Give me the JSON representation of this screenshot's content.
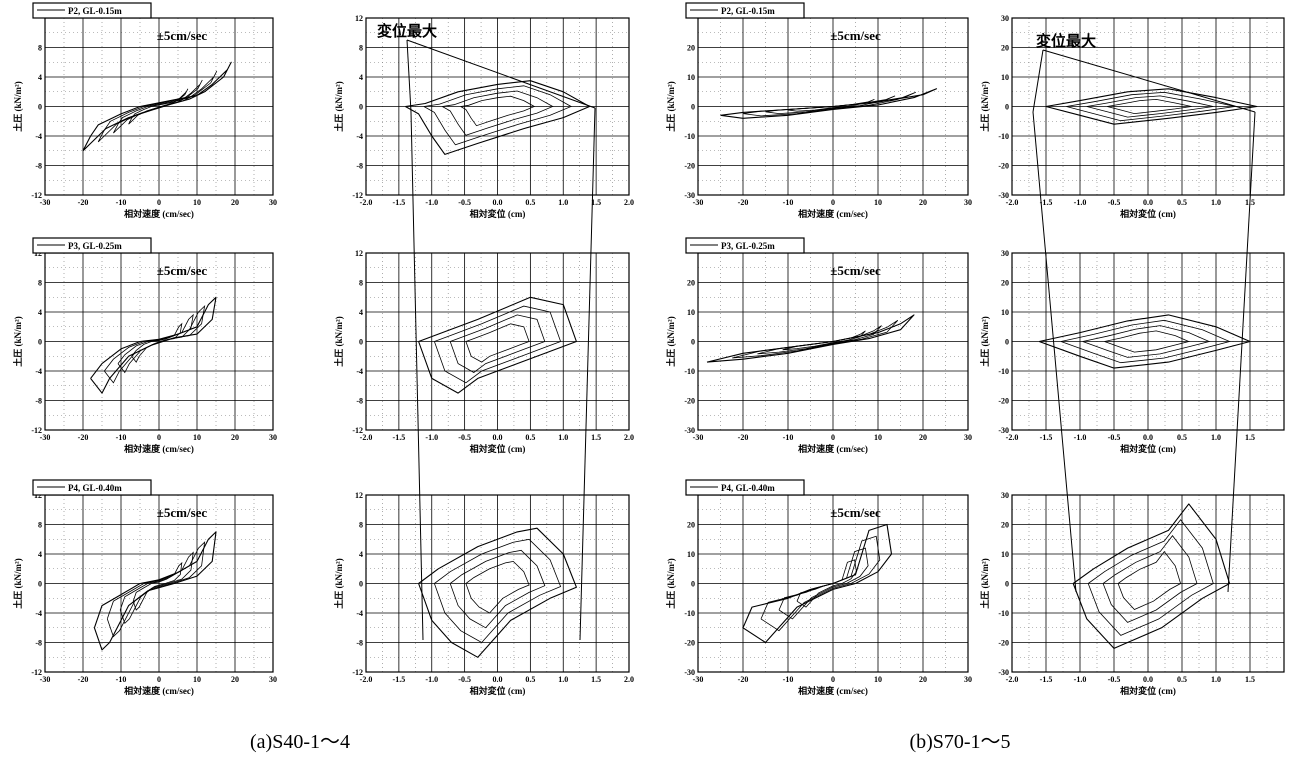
{
  "figure": {
    "captions": {
      "left": "(a)S40-1～4",
      "right": "(b)S70-1～5"
    },
    "annotation_text": "変位最大",
    "note_text": "±5cm/sec",
    "ylabel": "土圧 (kN/m²)",
    "xlabel_velocity": "相対速度 (cm/sec)",
    "xlabel_displacement": "相対変位 (cm)",
    "line_color": "#000000"
  },
  "chart_data": [
    {
      "id": "a-P2-vel",
      "type": "line",
      "legend": "P2, GL-0.15m",
      "note": "±5cm/sec",
      "xlabel": "相対速度 (cm/sec)",
      "ylabel": "土圧 (kN/m²)",
      "xlim": [
        -30,
        30
      ],
      "ylim": [
        -12,
        12
      ],
      "xticks": [
        -30,
        -20,
        -10,
        0,
        10,
        20,
        30
      ],
      "yticks": [
        -12,
        -8,
        -4,
        0,
        4,
        8
      ],
      "series": [
        {
          "points": [
            [
              -20,
              -6
            ],
            [
              -18,
              -4
            ],
            [
              -16,
              -2.5
            ],
            [
              -10,
              -1
            ],
            [
              -5,
              0
            ],
            [
              0,
              0.5
            ],
            [
              5,
              1
            ],
            [
              10,
              1.5
            ],
            [
              14,
              3
            ],
            [
              18,
              5
            ],
            [
              19,
              6
            ],
            [
              17,
              4
            ],
            [
              12,
              2
            ],
            [
              8,
              1
            ],
            [
              3,
              0.3
            ],
            [
              -2,
              -0.5
            ],
            [
              -8,
              -1.5
            ],
            [
              -14,
              -3
            ],
            [
              -18,
              -5
            ],
            [
              -20,
              -6
            ]
          ]
        }
      ]
    },
    {
      "id": "a-P2-disp",
      "type": "line",
      "xlabel": "相対変位 (cm)",
      "ylabel": "土圧 (kN/m²)",
      "xlim": [
        -2.0,
        2.0
      ],
      "ylim": [
        -12,
        12
      ],
      "xticks": [
        -2.0,
        -1.5,
        -1.0,
        -0.5,
        0.0,
        0.5,
        1.0,
        1.5,
        2.0
      ],
      "yticks": [
        -12,
        -8,
        -4,
        0,
        4,
        8,
        12
      ],
      "series": [
        {
          "points": [
            [
              -1.4,
              0
            ],
            [
              -1.1,
              0.4
            ],
            [
              -0.6,
              2
            ],
            [
              0,
              3
            ],
            [
              0.5,
              3.5
            ],
            [
              1.0,
              2
            ],
            [
              1.4,
              0
            ],
            [
              1.0,
              -1.5
            ],
            [
              0.4,
              -3
            ],
            [
              -0.3,
              -5
            ],
            [
              -0.8,
              -6.5
            ],
            [
              -1.0,
              -4
            ],
            [
              -1.2,
              -1
            ],
            [
              -1.4,
              0
            ]
          ]
        }
      ]
    },
    {
      "id": "a-P3-vel",
      "type": "line",
      "legend": "P3, GL-0.25m",
      "note": "±5cm/sec",
      "xlabel": "相対速度 (cm/sec)",
      "ylabel": "土圧 (kN/m²)",
      "xlim": [
        -30,
        30
      ],
      "ylim": [
        -12,
        12
      ],
      "xticks": [
        -30,
        -20,
        -10,
        0,
        10,
        20,
        30
      ],
      "yticks": [
        -12,
        -8,
        -4,
        0,
        4,
        8,
        12
      ],
      "series": [
        {
          "points": [
            [
              -18,
              -5
            ],
            [
              -15,
              -3
            ],
            [
              -10,
              -1
            ],
            [
              -5,
              0
            ],
            [
              0,
              0.3
            ],
            [
              5,
              1
            ],
            [
              10,
              2
            ],
            [
              13,
              5
            ],
            [
              15,
              6
            ],
            [
              14,
              3
            ],
            [
              10,
              1
            ],
            [
              4,
              0.5
            ],
            [
              -2,
              -0.5
            ],
            [
              -8,
              -2
            ],
            [
              -13,
              -5
            ],
            [
              -15,
              -7
            ],
            [
              -18,
              -5
            ]
          ]
        }
      ]
    },
    {
      "id": "a-P3-disp",
      "type": "line",
      "xlabel": "相対変位 (cm)",
      "ylabel": "土圧 (kN/m²)",
      "xlim": [
        -2.0,
        2.0
      ],
      "ylim": [
        -12,
        12
      ],
      "xticks": [
        -2.0,
        -1.5,
        -1.0,
        -0.5,
        0.0,
        0.5,
        1.0,
        1.5,
        2.0
      ],
      "yticks": [
        -12,
        -8,
        -4,
        0,
        4,
        8,
        12
      ],
      "series": [
        {
          "points": [
            [
              -1.2,
              0
            ],
            [
              -0.9,
              1
            ],
            [
              -0.3,
              3
            ],
            [
              0.5,
              6
            ],
            [
              1.0,
              5
            ],
            [
              1.2,
              0
            ],
            [
              0.9,
              -1
            ],
            [
              0.3,
              -3
            ],
            [
              -0.3,
              -5
            ],
            [
              -0.6,
              -7
            ],
            [
              -1.0,
              -5
            ],
            [
              -1.2,
              0
            ]
          ]
        }
      ]
    },
    {
      "id": "a-P4-vel",
      "type": "line",
      "legend": "P4, GL-0.40m",
      "note": "±5cm/sec",
      "xlabel": "相対速度 (cm/sec)",
      "ylabel": "土圧 (kN/m²)",
      "xlim": [
        -30,
        30
      ],
      "ylim": [
        -12,
        12
      ],
      "xticks": [
        -30,
        -20,
        -10,
        0,
        10,
        20,
        30
      ],
      "yticks": [
        -12,
        -8,
        -4,
        0,
        4,
        8,
        12
      ],
      "series": [
        {
          "points": [
            [
              -17,
              -6
            ],
            [
              -15,
              -3
            ],
            [
              -10,
              -1.5
            ],
            [
              -5,
              0
            ],
            [
              0,
              0.5
            ],
            [
              5,
              1.5
            ],
            [
              10,
              3
            ],
            [
              13,
              6
            ],
            [
              15,
              7
            ],
            [
              14,
              3
            ],
            [
              10,
              1
            ],
            [
              4,
              0
            ],
            [
              -3,
              -1
            ],
            [
              -8,
              -3
            ],
            [
              -13,
              -8
            ],
            [
              -15,
              -9
            ],
            [
              -17,
              -6
            ]
          ]
        }
      ]
    },
    {
      "id": "a-P4-disp",
      "type": "line",
      "xlabel": "相対変位 (cm)",
      "ylabel": "土圧 (kN/m²)",
      "xlim": [
        -2.0,
        2.0
      ],
      "ylim": [
        -12,
        12
      ],
      "xticks": [
        -2.0,
        -1.5,
        -1.0,
        -0.5,
        0.0,
        0.5,
        1.0,
        1.5,
        2.0
      ],
      "yticks": [
        -12,
        -8,
        -4,
        0,
        4,
        8,
        12
      ],
      "series": [
        {
          "points": [
            [
              -1.2,
              0
            ],
            [
              -0.9,
              2
            ],
            [
              -0.3,
              5
            ],
            [
              0.3,
              7
            ],
            [
              0.6,
              7.5
            ],
            [
              1.0,
              4
            ],
            [
              1.2,
              -0.5
            ],
            [
              0.8,
              -2
            ],
            [
              0.2,
              -5
            ],
            [
              -0.3,
              -10
            ],
            [
              -0.7,
              -8
            ],
            [
              -1.0,
              -5
            ],
            [
              -1.2,
              0
            ]
          ]
        }
      ]
    },
    {
      "id": "b-P2-vel",
      "type": "line",
      "legend": "P2, GL-0.15m",
      "note": "±5cm/sec",
      "xlabel": "相対速度 (cm/sec)",
      "ylabel": "土圧 (kN/m²)",
      "xlim": [
        -30,
        30
      ],
      "ylim": [
        -30,
        30
      ],
      "xticks": [
        -30,
        -20,
        -10,
        0,
        10,
        20,
        30
      ],
      "yticks": [
        -30,
        -20,
        -10,
        0,
        10,
        20
      ],
      "series": [
        {
          "points": [
            [
              -25,
              -3
            ],
            [
              -20,
              -2
            ],
            [
              -10,
              -1
            ],
            [
              0,
              0
            ],
            [
              10,
              1.5
            ],
            [
              20,
              4
            ],
            [
              23,
              6
            ],
            [
              18,
              3
            ],
            [
              10,
              0.5
            ],
            [
              0,
              -1
            ],
            [
              -10,
              -3
            ],
            [
              -20,
              -4
            ],
            [
              -25,
              -3
            ]
          ]
        }
      ]
    },
    {
      "id": "b-P2-disp",
      "type": "line",
      "xlabel": "相対変位 (cm)",
      "ylabel": "土圧 (kN/m²)",
      "xlim": [
        -2.0,
        2.0
      ],
      "ylim": [
        -30,
        30
      ],
      "xticks": [
        -2.0,
        -1.5,
        -1.0,
        -0.5,
        0.0,
        0.5,
        1.0,
        1.5
      ],
      "yticks": [
        -30,
        -20,
        -10,
        0,
        10,
        20,
        30
      ],
      "series": [
        {
          "points": [
            [
              -1.5,
              0
            ],
            [
              -1.0,
              2
            ],
            [
              -0.3,
              5
            ],
            [
              0.3,
              6
            ],
            [
              1.0,
              3
            ],
            [
              1.6,
              0
            ],
            [
              1.0,
              -2
            ],
            [
              0.3,
              -4
            ],
            [
              -0.5,
              -6
            ],
            [
              -1.0,
              -3
            ],
            [
              -1.5,
              0
            ]
          ]
        }
      ]
    },
    {
      "id": "b-P3-vel",
      "type": "line",
      "legend": "P3, GL-0.25m",
      "note": "±5cm/sec",
      "xlabel": "相対速度 (cm/sec)",
      "ylabel": "土圧 (kN/m²)",
      "xlim": [
        -30,
        30
      ],
      "ylim": [
        -30,
        30
      ],
      "xticks": [
        -30,
        -20,
        -10,
        0,
        10,
        20,
        30
      ],
      "yticks": [
        -30,
        -20,
        -10,
        0,
        10,
        20
      ],
      "series": [
        {
          "points": [
            [
              -28,
              -7
            ],
            [
              -20,
              -4
            ],
            [
              -10,
              -2
            ],
            [
              0,
              0
            ],
            [
              10,
              3
            ],
            [
              15,
              6
            ],
            [
              18,
              9
            ],
            [
              15,
              4
            ],
            [
              8,
              1
            ],
            [
              0,
              -1
            ],
            [
              -10,
              -4
            ],
            [
              -20,
              -6
            ],
            [
              -28,
              -7
            ]
          ]
        }
      ]
    },
    {
      "id": "b-P3-disp",
      "type": "line",
      "xlabel": "相対変位 (cm)",
      "ylabel": "土圧 (kN/m²)",
      "xlim": [
        -2.0,
        2.0
      ],
      "ylim": [
        -30,
        30
      ],
      "xticks": [
        -2.0,
        -1.5,
        -1.0,
        -0.5,
        0.0,
        0.5,
        1.0,
        1.5
      ],
      "yticks": [
        -30,
        -20,
        -10,
        0,
        10,
        20,
        30
      ],
      "series": [
        {
          "points": [
            [
              -1.6,
              0
            ],
            [
              -1.0,
              3
            ],
            [
              -0.3,
              7
            ],
            [
              0.3,
              9
            ],
            [
              1.0,
              5
            ],
            [
              1.5,
              0
            ],
            [
              1.0,
              -3
            ],
            [
              0.3,
              -7
            ],
            [
              -0.5,
              -9
            ],
            [
              -1.0,
              -5
            ],
            [
              -1.6,
              0
            ]
          ]
        }
      ]
    },
    {
      "id": "b-P4-vel",
      "type": "line",
      "legend": "P4, GL-0.40m",
      "note": "±5cm/sec",
      "xlabel": "相対速度 (cm/sec)",
      "ylabel": "土圧 (kN/m²)",
      "xlim": [
        -30,
        30
      ],
      "ylim": [
        -30,
        30
      ],
      "xticks": [
        -30,
        -20,
        -10,
        0,
        10,
        20,
        30
      ],
      "yticks": [
        -30,
        -20,
        -10,
        0,
        10,
        20
      ],
      "series": [
        {
          "points": [
            [
              -20,
              -15
            ],
            [
              -18,
              -8
            ],
            [
              -10,
              -5
            ],
            [
              -5,
              -2
            ],
            [
              0,
              0
            ],
            [
              5,
              3
            ],
            [
              8,
              18
            ],
            [
              12,
              20
            ],
            [
              13,
              10
            ],
            [
              10,
              4
            ],
            [
              5,
              0
            ],
            [
              0,
              -2
            ],
            [
              -8,
              -8
            ],
            [
              -15,
              -20
            ],
            [
              -20,
              -15
            ]
          ]
        }
      ]
    },
    {
      "id": "b-P4-disp",
      "type": "line",
      "xlabel": "相対変位 (cm)",
      "ylabel": "土圧 (kN/m²)",
      "xlim": [
        -2.0,
        2.0
      ],
      "ylim": [
        -30,
        30
      ],
      "xticks": [
        -2.0,
        -1.5,
        -1.0,
        -0.5,
        0.0,
        0.5,
        1.0,
        1.5
      ],
      "yticks": [
        -30,
        -20,
        -10,
        0,
        10,
        20,
        30
      ],
      "series": [
        {
          "points": [
            [
              -1.1,
              0
            ],
            [
              -0.8,
              5
            ],
            [
              -0.3,
              12
            ],
            [
              0.3,
              18
            ],
            [
              0.6,
              27
            ],
            [
              1.0,
              15
            ],
            [
              1.2,
              0
            ],
            [
              0.8,
              -5
            ],
            [
              0.2,
              -15
            ],
            [
              -0.5,
              -22
            ],
            [
              -0.9,
              -12
            ],
            [
              -1.1,
              0
            ]
          ]
        }
      ]
    }
  ]
}
